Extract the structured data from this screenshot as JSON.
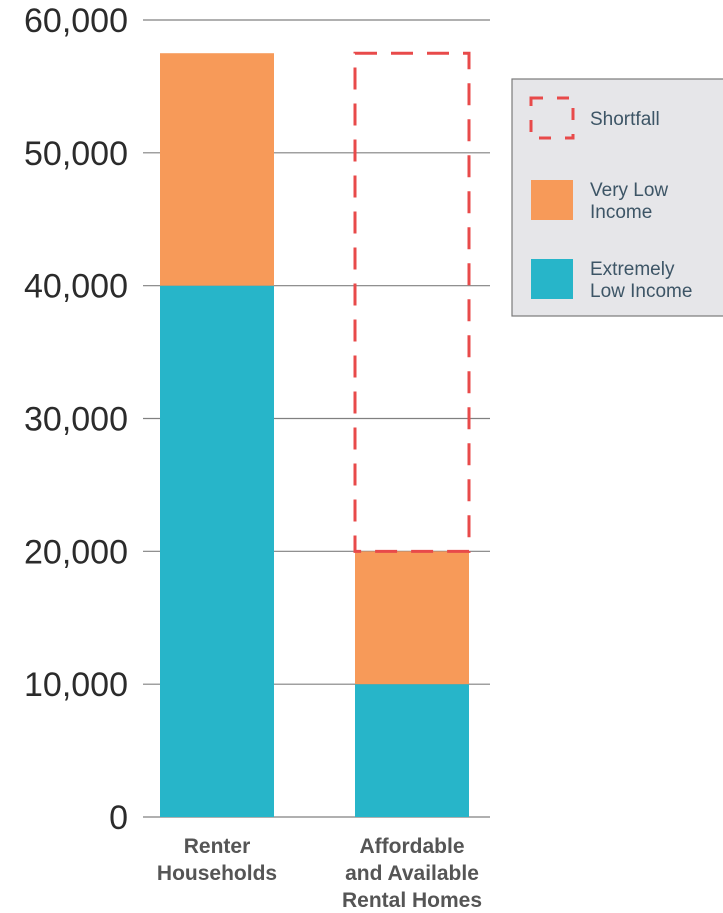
{
  "chart_data": {
    "type": "bar",
    "stacked": true,
    "categories": [
      [
        "Renter",
        "Households"
      ],
      [
        "Affordable",
        "and Available",
        "Rental Homes"
      ]
    ],
    "series": [
      {
        "name": "Extremely Low Income",
        "color": "#27b5c9",
        "values": [
          40000,
          10000
        ]
      },
      {
        "name": "Very Low Income",
        "color": "#f79a59",
        "values": [
          17500,
          10000
        ]
      }
    ],
    "shortfall": {
      "name": "Shortfall",
      "color": "#e84a4a",
      "category_index": 1,
      "from": 20000,
      "to": 57500
    },
    "ylim": [
      0,
      60000
    ],
    "yticks": [
      0,
      10000,
      20000,
      30000,
      40000,
      50000,
      60000
    ],
    "ytick_labels": [
      "0",
      "10,000",
      "20,000",
      "30,000",
      "40,000",
      "50,000",
      "60,000"
    ],
    "grid": true,
    "legend": {
      "placement": "right",
      "items": [
        {
          "key": "shortfall",
          "lines": [
            "Shortfall"
          ]
        },
        {
          "key": "very_low",
          "lines": [
            "Very Low",
            "Income"
          ]
        },
        {
          "key": "extremely_low",
          "lines": [
            "Extremely",
            "Low Income"
          ]
        }
      ]
    }
  }
}
